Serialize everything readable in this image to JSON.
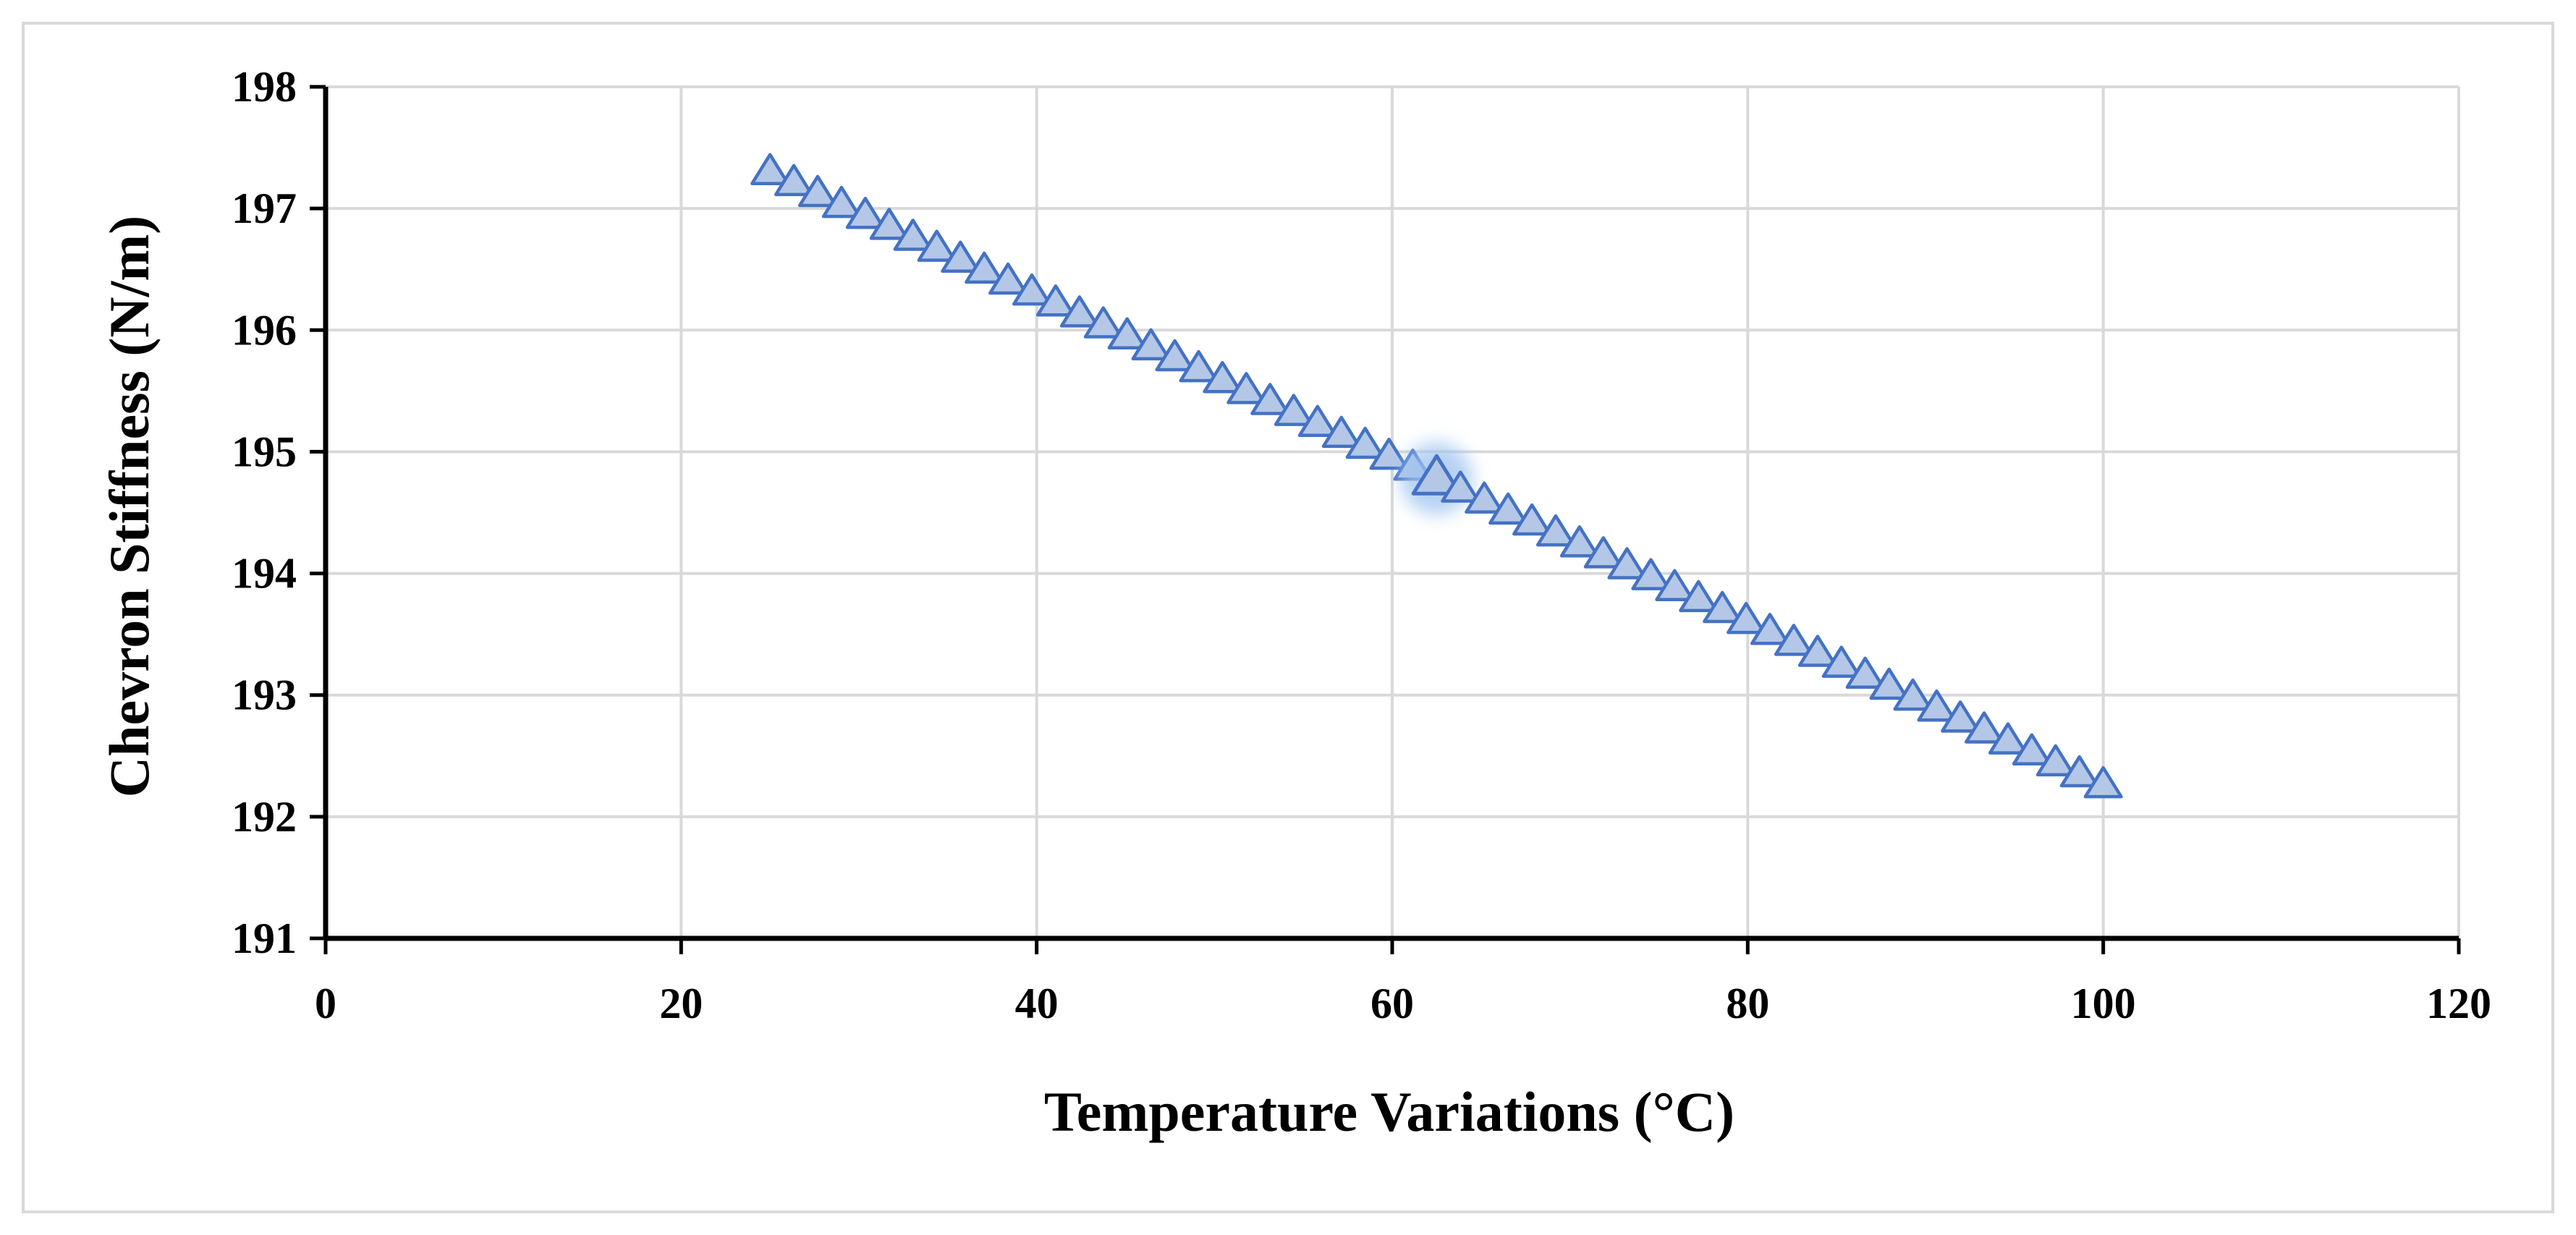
{
  "chart_data": {
    "type": "scatter",
    "title": "",
    "xlabel": "Temperature Variations (°C)",
    "ylabel": "Chevron Stiffness (N/m)",
    "xlim": [
      0,
      120
    ],
    "ylim": [
      191,
      198
    ],
    "xticks": [
      0,
      20,
      40,
      60,
      80,
      100,
      120
    ],
    "yticks": [
      191,
      192,
      193,
      194,
      195,
      196,
      197,
      198
    ],
    "xtick_labels": [
      "0",
      "20",
      "40",
      "60",
      "80",
      "100",
      "120"
    ],
    "ytick_labels": [
      "191",
      "192",
      "193",
      "194",
      "195",
      "196",
      "197",
      "198"
    ],
    "grid": true,
    "marker": "triangle",
    "colors": {
      "marker_fill": "#b4c7e7",
      "marker_stroke": "#4472c4",
      "highlight_glow": "#9dc3f0",
      "grid": "#d9d9d9",
      "axis": "#000000"
    },
    "highlight_index": 28,
    "series": [
      {
        "name": "Chevron Stiffness",
        "x": [
          25,
          26.34,
          27.68,
          29.02,
          30.36,
          31.7,
          33.04,
          34.38,
          35.71,
          37.05,
          38.39,
          39.73,
          41.07,
          42.41,
          43.75,
          45.09,
          46.43,
          47.77,
          49.11,
          50.45,
          51.79,
          53.13,
          54.46,
          55.8,
          57.14,
          58.48,
          59.82,
          61.16,
          62.5,
          63.84,
          65.18,
          66.52,
          67.86,
          69.2,
          70.54,
          71.88,
          73.21,
          74.55,
          75.89,
          77.23,
          78.57,
          79.91,
          81.25,
          82.59,
          83.93,
          85.27,
          86.61,
          87.95,
          89.29,
          90.63,
          91.96,
          93.3,
          94.64,
          95.98,
          97.32,
          98.66,
          100
        ],
        "y": [
          197.3,
          197.21,
          197.12,
          197.03,
          196.94,
          196.85,
          196.76,
          196.67,
          196.58,
          196.49,
          196.4,
          196.31,
          196.22,
          196.13,
          196.04,
          195.95,
          195.86,
          195.77,
          195.68,
          195.59,
          195.5,
          195.41,
          195.32,
          195.23,
          195.14,
          195.05,
          194.96,
          194.87,
          194.78,
          194.69,
          194.6,
          194.51,
          194.42,
          194.33,
          194.24,
          194.15,
          194.06,
          193.97,
          193.88,
          193.79,
          193.7,
          193.61,
          193.52,
          193.43,
          193.34,
          193.25,
          193.16,
          193.07,
          192.98,
          192.89,
          192.8,
          192.71,
          192.62,
          192.53,
          192.44,
          192.35,
          192.26
        ]
      }
    ]
  }
}
